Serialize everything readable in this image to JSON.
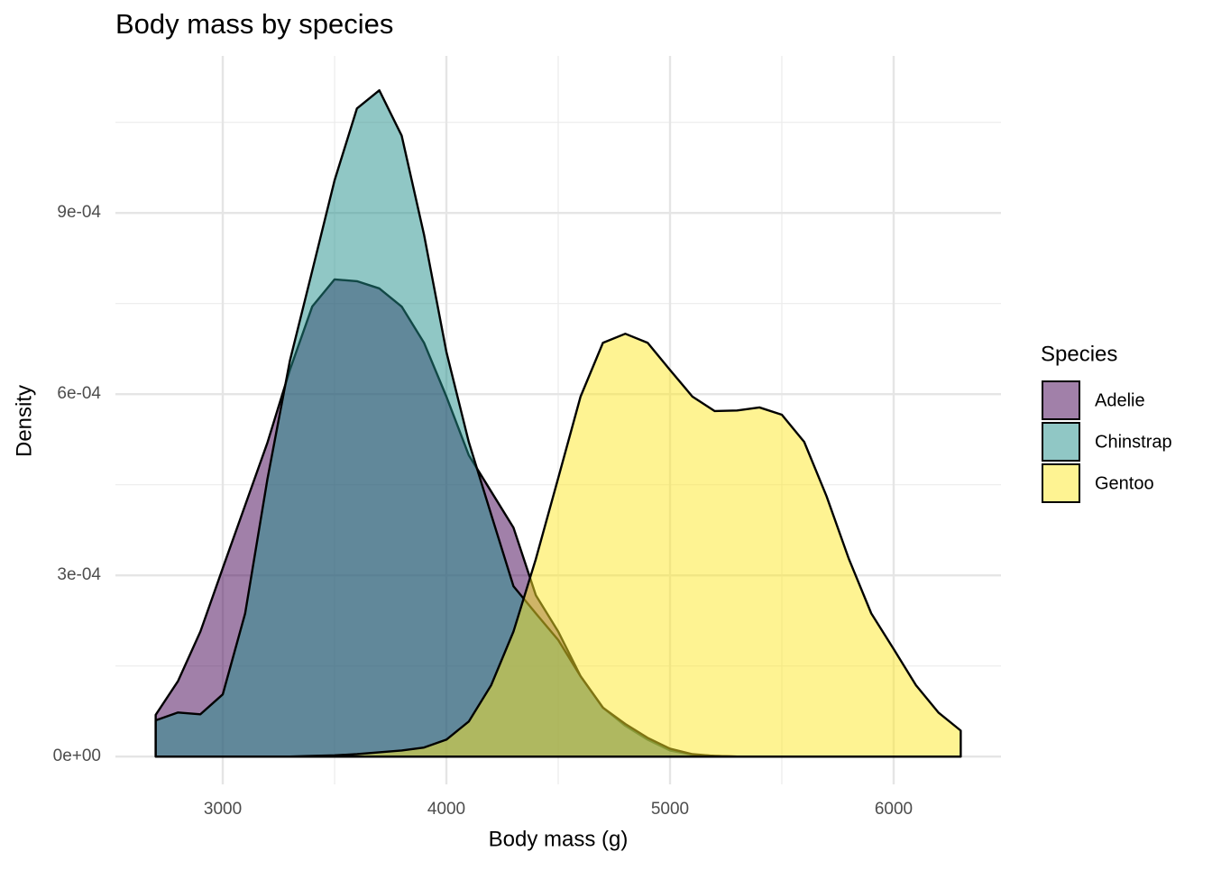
{
  "chart_data": {
    "type": "density",
    "title": "Body mass by species",
    "x_label": "Body mass (g)",
    "y_label": "Density",
    "legend_title": "Species",
    "legend_position": "right",
    "grid": true,
    "opacity": 0.5,
    "x": [
      2700,
      2800,
      2900,
      3000,
      3100,
      3200,
      3300,
      3400,
      3500,
      3600,
      3700,
      3800,
      3900,
      4000,
      4100,
      4200,
      4300,
      4400,
      4500,
      4600,
      4700,
      4800,
      4900,
      5000,
      5100,
      5200,
      5300,
      5400,
      5500,
      5600,
      5700,
      5800,
      5900,
      6000,
      6100,
      6200,
      6300
    ],
    "series": [
      {
        "name": "Adelie",
        "color": "#440154",
        "values": [
          6.9e-05,
          0.000125,
          0.000207,
          0.000312,
          0.000416,
          0.00052,
          0.00064,
          0.000745,
          0.00079,
          0.000787,
          0.000775,
          0.000745,
          0.000685,
          0.000596,
          0.000499,
          0.000439,
          0.000379,
          0.000267,
          0.000207,
          0.000133,
          8.1e-05,
          5.1e-05,
          2.8e-05,
          1e-05,
          3e-06,
          1e-06,
          0,
          0,
          0,
          0,
          0,
          0,
          0,
          0,
          0,
          0,
          0
        ]
      },
      {
        "name": "Chinstrap",
        "color": "#21908C",
        "values": [
          6e-05,
          7.3e-05,
          7e-05,
          0.000103,
          0.000237,
          0.00046,
          0.000655,
          0.000804,
          0.000954,
          0.001073,
          0.001103,
          0.001028,
          0.000864,
          0.00067,
          0.000521,
          0.000401,
          0.000282,
          0.000237,
          0.000193,
          0.000133,
          8.1e-05,
          5.4e-05,
          3.1e-05,
          1.3e-05,
          4e-06,
          1e-06,
          0,
          0,
          0,
          0,
          0,
          0,
          0,
          0,
          0,
          0,
          0
        ]
      },
      {
        "name": "Gentoo",
        "color": "#FDE725",
        "values": [
          0,
          0,
          0,
          0,
          0,
          0,
          0,
          1e-06,
          2e-06,
          4e-06,
          7e-06,
          1e-05,
          1.5e-05,
          2.8e-05,
          5.8e-05,
          0.000118,
          0.000207,
          0.000327,
          0.000461,
          0.000596,
          0.000685,
          0.0007,
          0.000685,
          0.00064,
          0.000596,
          0.000572,
          0.000573,
          0.000578,
          0.000566,
          0.000521,
          0.000431,
          0.000327,
          0.000237,
          0.000178,
          0.000118,
          7.3e-05,
          4.3e-05
        ]
      }
    ],
    "xlim": [
      2520,
      6480
    ],
    "xticks": [
      3000,
      4000,
      5000,
      6000
    ],
    "ylim": [
      -4.6e-05,
      0.00116
    ],
    "yticks": [
      {
        "value": 0,
        "label": "0e+00"
      },
      {
        "value": 0.0003,
        "label": "3e-04"
      },
      {
        "value": 0.0006,
        "label": "6e-04"
      },
      {
        "value": 0.0009,
        "label": "9e-04"
      }
    ]
  }
}
